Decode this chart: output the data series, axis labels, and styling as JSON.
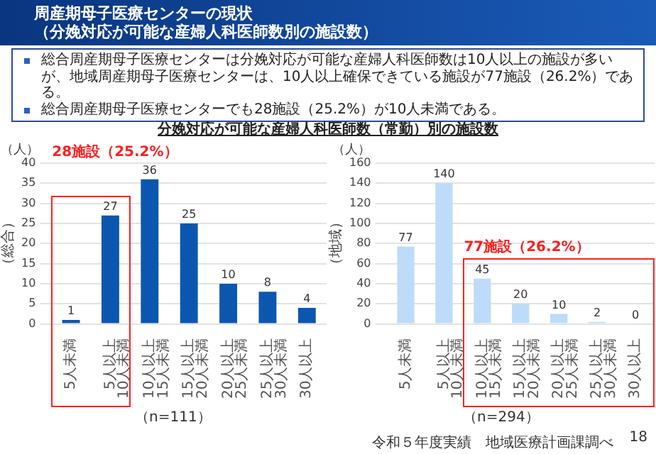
{
  "chart_data": [
    {
      "type": "bar",
      "title": "周産期母子医療センターの現状",
      "subtitle": "（分娩対応が可能な産婦人科医師数別の施設数）",
      "ylabel": "（総合）",
      "categories": [
        "5人未満",
        "5人以上\n10人未満",
        "10人以上\n15人未満",
        "15人以上\n20人未満",
        "20人以上\n25人未満",
        "25人以上\n30人未満",
        "30人以上"
      ],
      "values": [
        1,
        27,
        36,
        25,
        10,
        8,
        4
      ],
      "color": "#0b57b0",
      "ylim": [
        0,
        40
      ],
      "yticks": [
        0,
        5,
        10,
        15,
        20,
        25,
        30,
        35,
        40
      ],
      "grid": "y",
      "data_labels": true,
      "annotations": [
        "（人）",
        "28施設（25.2%）",
        "（n=111）",
        "総合周産期母子医療センターは分娩対応が可能な産婦人科医師数は10人以上の施設が多いが、地域周産期母子医療センターは、10人以上確保できている施設が77施設（26.2%）である。",
        "総合周産期母子医療センターでも28施設（25.2%）が10人未満である。"
      ]
    },
    {
      "type": "bar",
      "title": "分娩対応が可能な産婦人科医師数（常勤）別の施設数",
      "ylabel": "（地域）",
      "categories": [
        "5人未満",
        "5人以上\n10人未満",
        "10人以上\n15人未満",
        "15人以上\n20人未満",
        "20人以上\n25人未満",
        "25人以上\n30人未満",
        "30人以上"
      ],
      "values": [
        77,
        140,
        45,
        20,
        10,
        2,
        0
      ],
      "color": "#bcdcfa",
      "ylim": [
        0,
        160
      ],
      "yticks": [
        0,
        20,
        40,
        60,
        80,
        100,
        120,
        140,
        160
      ],
      "grid": "y",
      "data_labels": true,
      "annotations": [
        "（人）",
        "77施設（26.2%）",
        "（n=294）",
        "令和５年度実績　地域医療計画課調べ",
        "18"
      ]
    }
  ]
}
